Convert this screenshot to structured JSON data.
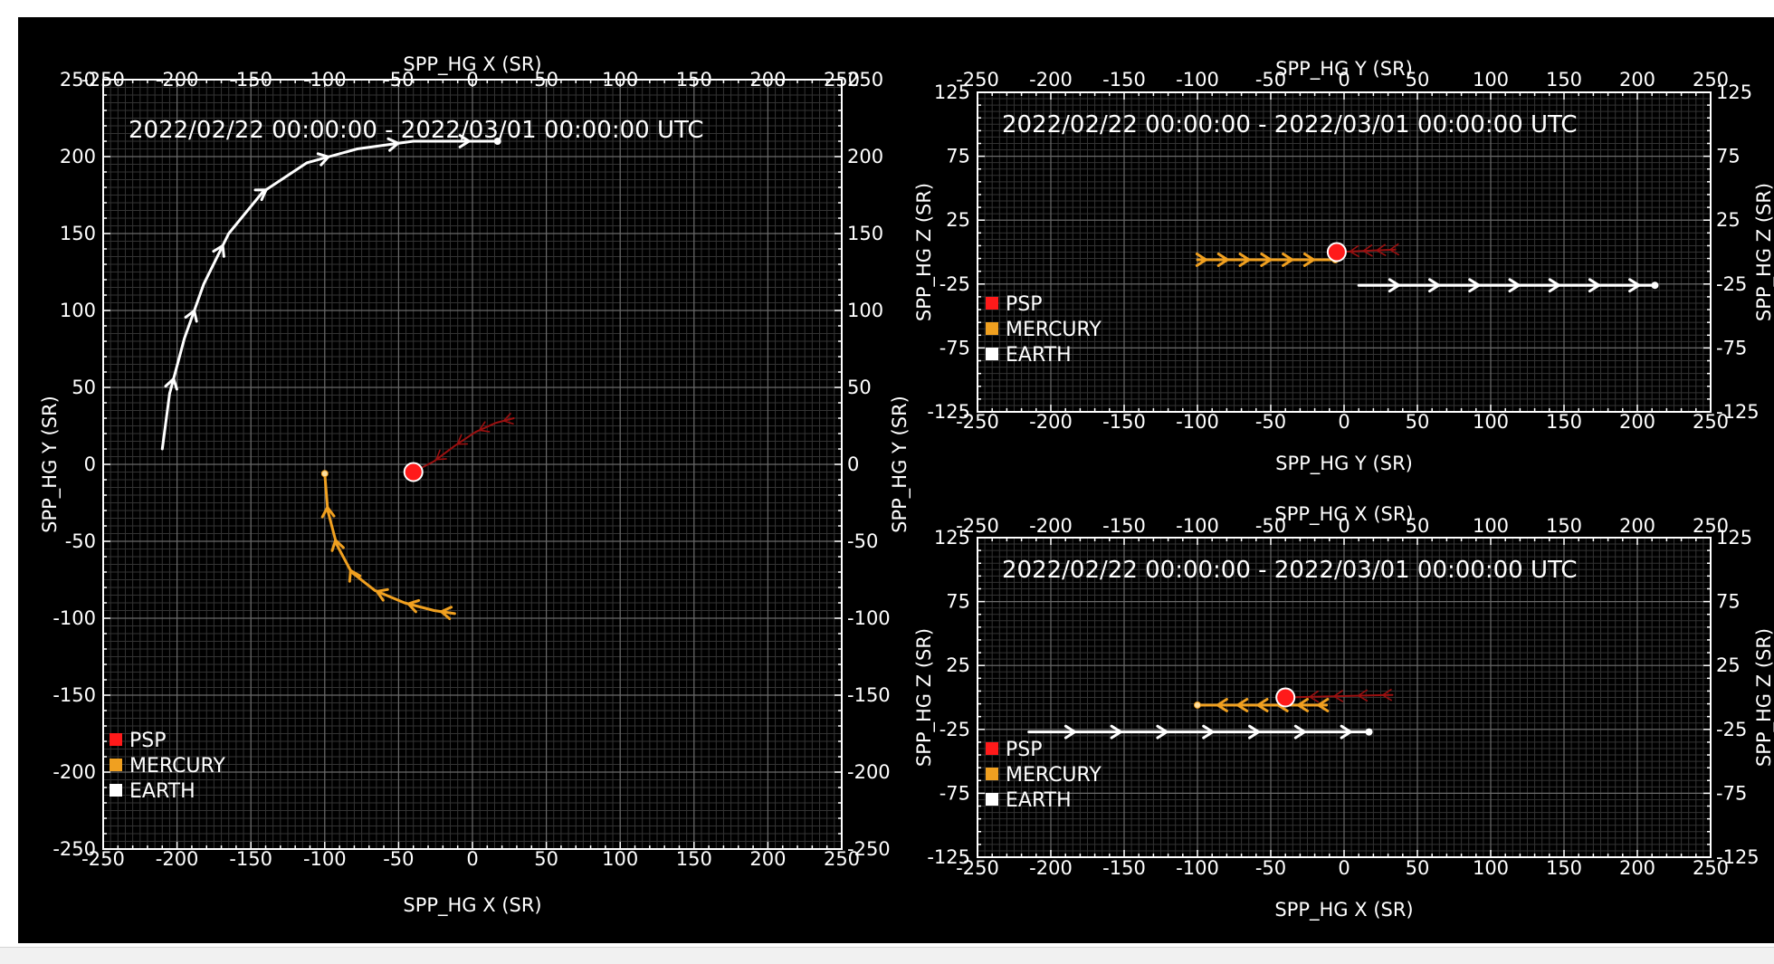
{
  "colors": {
    "background": "#000000",
    "axis": "#ffffff",
    "grid_major": "#6a6a6a",
    "grid_minor": "#333333",
    "psp": "#ff1a1a",
    "psp_track": "#9b1010",
    "mercury": "#f0a020",
    "earth": "#ffffff"
  },
  "chart_data": [
    {
      "type": "scatter",
      "id": "xy-plot",
      "time_range": "2022/02/22 00:00:00 - 2022/03/01 00:00:00 UTC",
      "xlabel": "SPP_HG X (SR)",
      "ylabel": "SPP_HG Y (SR)",
      "xlim": [
        -250,
        250
      ],
      "ylim": [
        -250,
        250
      ],
      "ticks": [
        -250,
        -200,
        -150,
        -100,
        -50,
        0,
        50,
        100,
        150,
        200,
        250
      ],
      "grid": true,
      "legend_position": "bottom-left",
      "legend": [
        "PSP",
        "MERCURY",
        "EARTH"
      ],
      "series": [
        {
          "name": "EARTH",
          "color": "#ffffff",
          "marker_end": [
            17,
            210
          ],
          "arrows": "forward",
          "points": [
            [
              -210,
              10
            ],
            [
              -205,
              46
            ],
            [
              -195,
              82
            ],
            [
              -182,
              117
            ],
            [
              -165,
              150
            ],
            [
              -142,
              177
            ],
            [
              -112,
              196
            ],
            [
              -78,
              205
            ],
            [
              -40,
              210
            ],
            [
              17,
              210
            ]
          ]
        },
        {
          "name": "MERCURY",
          "color": "#f0a020",
          "marker_end": [
            -100,
            -6
          ],
          "arrows": "backward",
          "points": [
            [
              -100,
              -6
            ],
            [
              -98,
              -30
            ],
            [
              -92,
              -52
            ],
            [
              -82,
              -70
            ],
            [
              -66,
              -82
            ],
            [
              -46,
              -90
            ],
            [
              -26,
              -95
            ],
            [
              -12,
              -97
            ]
          ]
        },
        {
          "name": "PSP",
          "color": "#ff1a1a",
          "track_color": "#9b1010",
          "marker_end": [
            -40,
            -5
          ],
          "arrows": "backward",
          "points": [
            [
              -40,
              -5
            ],
            [
              -26,
              2
            ],
            [
              -12,
              12
            ],
            [
              2,
              21
            ],
            [
              16,
              27
            ],
            [
              28,
              30
            ]
          ]
        }
      ]
    },
    {
      "type": "scatter",
      "id": "yz-plot",
      "time_range": "2022/02/22 00:00:00 - 2022/03/01 00:00:00 UTC",
      "xlabel": "SPP_HG Y (SR)",
      "ylabel": "SPP_HG Z (SR)",
      "xlim": [
        -250,
        250
      ],
      "ylim": [
        -125,
        125
      ],
      "xticks": [
        -250,
        -200,
        -150,
        -100,
        -50,
        0,
        50,
        100,
        150,
        200,
        250
      ],
      "yticks": [
        125,
        75,
        25,
        -25,
        -75,
        -125
      ],
      "grid": true,
      "legend_position": "bottom-left",
      "legend": [
        "PSP",
        "MERCURY",
        "EARTH"
      ],
      "series": [
        {
          "name": "EARTH",
          "color": "#ffffff",
          "marker_end": [
            212,
            -26
          ],
          "arrows": "forward",
          "points": [
            [
              10,
              -26
            ],
            [
              212,
              -26
            ]
          ]
        },
        {
          "name": "MERCURY",
          "color": "#f0a020",
          "marker_end": [
            -6,
            -6
          ],
          "arrows": "backward",
          "points": [
            [
              -6,
              -6
            ],
            [
              -100,
              -6
            ]
          ]
        },
        {
          "name": "PSP",
          "color": "#ff1a1a",
          "track_color": "#9b1010",
          "marker_end": [
            -5,
            0
          ],
          "arrows": "backward",
          "points": [
            [
              -5,
              0
            ],
            [
              35,
              2
            ]
          ]
        }
      ]
    },
    {
      "type": "scatter",
      "id": "xz-plot",
      "time_range": "2022/02/22 00:00:00 - 2022/03/01 00:00:00 UTC",
      "xlabel": "SPP_HG X (SR)",
      "ylabel": "SPP_HG Z (SR)",
      "xlim": [
        -250,
        250
      ],
      "ylim": [
        -125,
        125
      ],
      "xticks": [
        -250,
        -200,
        -150,
        -100,
        -50,
        0,
        50,
        100,
        150,
        200,
        250
      ],
      "yticks": [
        125,
        75,
        25,
        -25,
        -75,
        -125
      ],
      "grid": true,
      "legend_position": "bottom-left",
      "legend": [
        "PSP",
        "MERCURY",
        "EARTH"
      ],
      "series": [
        {
          "name": "EARTH",
          "color": "#ffffff",
          "marker_end": [
            17,
            -27
          ],
          "arrows": "forward",
          "points": [
            [
              -215,
              -27
            ],
            [
              17,
              -27
            ]
          ]
        },
        {
          "name": "MERCURY",
          "color": "#f0a020",
          "marker_end": [
            -100,
            -6
          ],
          "arrows": "backward",
          "points": [
            [
              -100,
              -6
            ],
            [
              -12,
              -6
            ]
          ]
        },
        {
          "name": "PSP",
          "color": "#ff1a1a",
          "track_color": "#9b1010",
          "marker_end": [
            -40,
            0
          ],
          "arrows": "backward",
          "points": [
            [
              -40,
              0
            ],
            [
              33,
              2
            ]
          ]
        }
      ]
    }
  ]
}
